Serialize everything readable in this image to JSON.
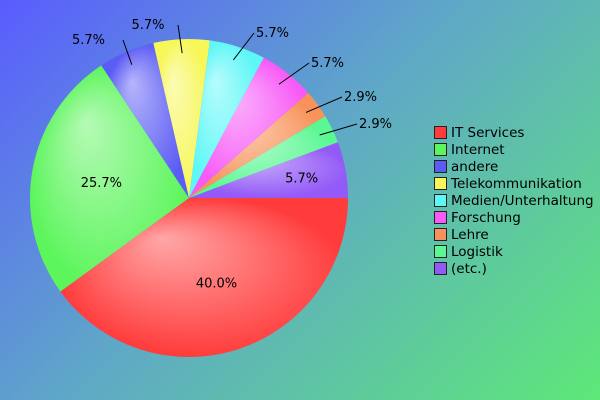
{
  "chart_data": {
    "type": "pie",
    "title": "",
    "categories": [
      "IT Services",
      "Internet",
      "andere",
      "Telekommunikation",
      "Medien/Unterhaltung",
      "Forschung",
      "Lehre",
      "Logistik",
      "(etc.)"
    ],
    "values": [
      40.0,
      25.7,
      5.7,
      5.7,
      5.7,
      5.7,
      2.9,
      2.9,
      5.7
    ],
    "labels": [
      "40.0%",
      "25.7%",
      "5.7%",
      "5.7%",
      "5.7%",
      "5.7%",
      "2.9%",
      "2.9%",
      "5.7%"
    ],
    "colors": [
      "#ff3b3b",
      "#5cf55c",
      "#5b5bf5",
      "#f7f75a",
      "#5ef7f7",
      "#f75af7",
      "#f7935a",
      "#5af793",
      "#935af7"
    ],
    "legend_position": "right"
  }
}
